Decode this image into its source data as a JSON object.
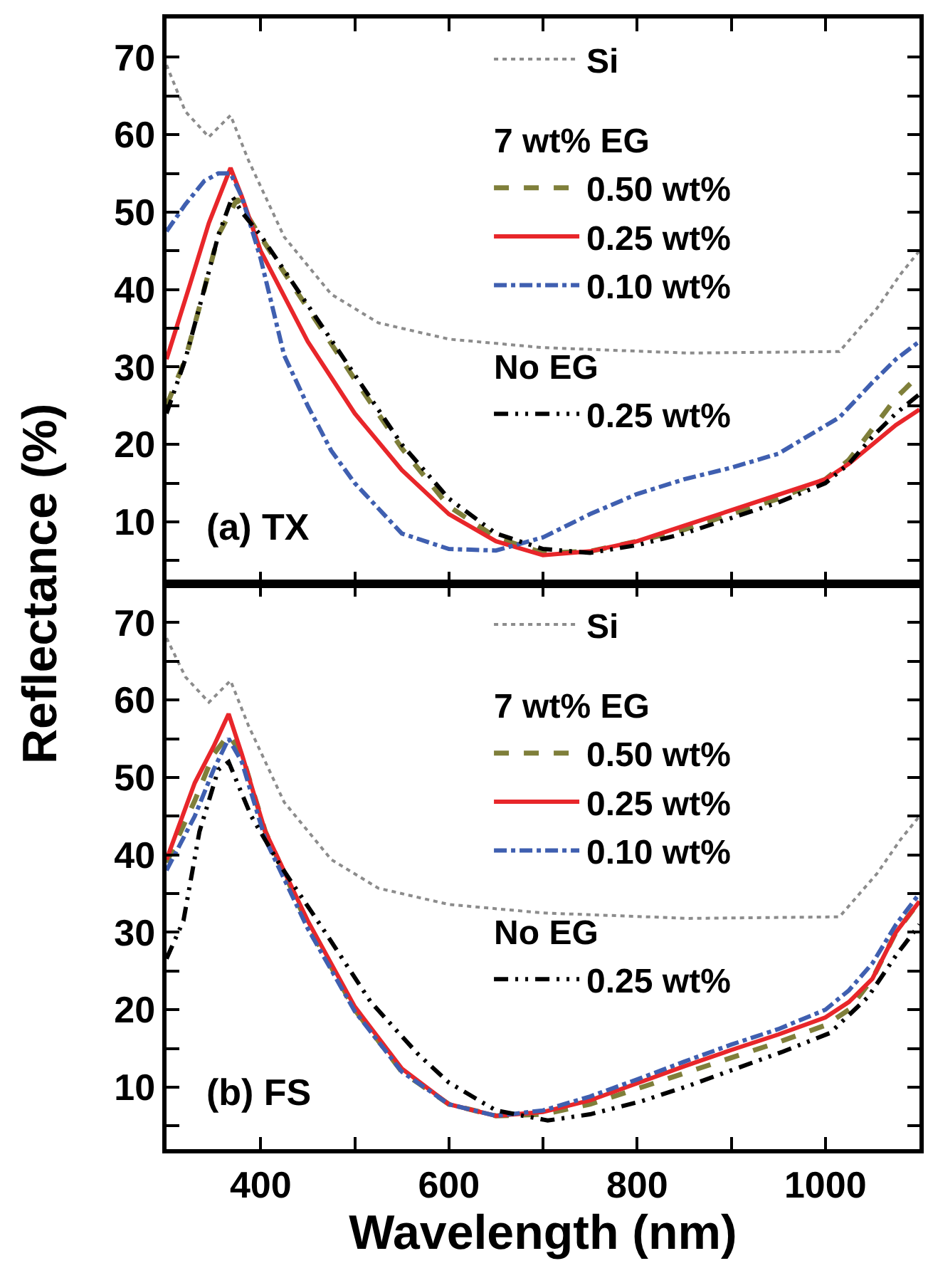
{
  "chart_data": [
    {
      "type": "line",
      "ylabel": "Reflectance (%)",
      "xlim": [
        300,
        1100
      ],
      "ylim": [
        2,
        75
      ],
      "xticks": [
        {
          "value": 300,
          "label": null
        },
        400,
        {
          "value": 500,
          "label": null
        },
        600,
        {
          "value": 700,
          "label": null
        },
        800,
        {
          "value": 900,
          "label": null
        },
        1000,
        {
          "value": 1100,
          "label": null
        }
      ],
      "yticks": [
        {
          "value": 5,
          "label": null
        },
        10,
        {
          "value": 15,
          "label": null
        },
        20,
        {
          "value": 25,
          "label": null
        },
        30,
        {
          "value": 35,
          "label": null
        },
        40,
        {
          "value": 45,
          "label": null
        },
        50,
        {
          "value": 55,
          "label": null
        },
        60,
        {
          "value": 65,
          "label": null
        },
        70
      ],
      "tick_labels": "y",
      "legend": "top right",
      "annotations": [
        "(a) TX",
        "7 wt% EG",
        "No EG"
      ],
      "series": [
        {
          "name": "Si",
          "color": "#8c8c8c",
          "line_style": "dotted",
          "x": [
            300,
            320,
            345,
            368,
            387,
            425,
            475,
            525,
            600,
            700,
            855,
            1015,
            1055,
            1080,
            1100
          ],
          "values": [
            69,
            63,
            59.7,
            62.5,
            56.7,
            46.8,
            39.4,
            35.7,
            33.6,
            32.5,
            31.8,
            32,
            37.6,
            42,
            45
          ]
        },
        {
          "name": "0.50 wt%",
          "color": "#7f7f3a",
          "line_style": "dashed",
          "x": [
            300,
            320,
            340,
            355,
            375,
            400,
            450,
            500,
            550,
            600,
            650,
            700,
            750,
            800,
            850,
            900,
            950,
            1000,
            1025,
            1050,
            1075,
            1100
          ],
          "values": [
            25,
            31,
            40,
            47,
            51.7,
            46.8,
            37.6,
            28.4,
            19.5,
            12,
            8,
            6,
            6.2,
            7.5,
            9,
            11,
            13,
            15.5,
            18,
            22,
            26,
            29
          ]
        },
        {
          "name": "0.25 wt%",
          "color": "#e8262a",
          "line_style": "solid",
          "x": [
            300,
            325,
            345,
            368,
            380,
            400,
            450,
            500,
            550,
            600,
            650,
            700,
            750,
            800,
            850,
            900,
            950,
            1000,
            1025,
            1050,
            1075,
            1100
          ],
          "values": [
            31,
            40.7,
            48.6,
            55.7,
            52,
            45,
            33.3,
            24,
            16.7,
            11,
            7.5,
            5.7,
            6.2,
            7.5,
            9.5,
            11.5,
            13.5,
            15.5,
            17.5,
            20,
            22.5,
            24.5
          ]
        },
        {
          "name": "0.10 wt%",
          "color": "#3f5fb0",
          "line_style": "dashdot",
          "x": [
            300,
            320,
            340,
            355,
            368,
            380,
            400,
            425,
            450,
            475,
            500,
            550,
            600,
            650,
            700,
            750,
            800,
            850,
            900,
            950,
            1015,
            1050,
            1075,
            1100
          ],
          "values": [
            47.5,
            51,
            54,
            55,
            55,
            52,
            44,
            31.5,
            25,
            19.2,
            15,
            8.5,
            6.5,
            6.3,
            8,
            11,
            13.6,
            15.5,
            17,
            18.8,
            23.5,
            28,
            31,
            33.3
          ]
        },
        {
          "name": "0.25 wt%",
          "color": "#000000",
          "line_style": "dashdotdot",
          "x": [
            300,
            320,
            340,
            355,
            370,
            380,
            400,
            450,
            500,
            550,
            600,
            650,
            700,
            750,
            800,
            850,
            900,
            950,
            1000,
            1025,
            1050,
            1075,
            1100
          ],
          "values": [
            24,
            31,
            40,
            47,
            52,
            50,
            47,
            38,
            29,
            20,
            13,
            8.5,
            6.5,
            6,
            7,
            8.5,
            10.5,
            12.5,
            15,
            17.5,
            21,
            24,
            26.5
          ]
        }
      ]
    },
    {
      "type": "line",
      "xlabel": "Wavelength (nm)",
      "xlim": [
        300,
        1100
      ],
      "ylim": [
        2,
        75
      ],
      "xticks": [
        {
          "value": 300,
          "label": null
        },
        400,
        {
          "value": 500,
          "label": null
        },
        600,
        {
          "value": 700,
          "label": null
        },
        800,
        {
          "value": 900,
          "label": null
        },
        1000,
        {
          "value": 1100,
          "label": null
        }
      ],
      "yticks": [
        {
          "value": 5,
          "label": null
        },
        10,
        {
          "value": 15,
          "label": null
        },
        20,
        {
          "value": 25,
          "label": null
        },
        30,
        {
          "value": 35,
          "label": null
        },
        40,
        {
          "value": 45,
          "label": null
        },
        50,
        {
          "value": 55,
          "label": null
        },
        60,
        {
          "value": 65,
          "label": null
        },
        70
      ],
      "legend": "top right",
      "annotations": [
        "(b) FS",
        "7 wt% EG",
        "No EG"
      ],
      "series": [
        {
          "name": "Si",
          "color": "#8c8c8c",
          "line_style": "dotted",
          "x": [
            300,
            320,
            345,
            368,
            387,
            425,
            475,
            525,
            600,
            700,
            855,
            1015,
            1055,
            1080,
            1100
          ],
          "values": [
            68,
            63,
            59.7,
            62.5,
            56.7,
            46.8,
            39.4,
            35.7,
            33.6,
            32.5,
            31.8,
            32,
            37.6,
            42,
            45
          ]
        },
        {
          "name": "0.50 wt%",
          "color": "#7f7f3a",
          "line_style": "dashed",
          "x": [
            300,
            330,
            350,
            366,
            380,
            405,
            450,
            500,
            550,
            600,
            650,
            700,
            750,
            800,
            850,
            900,
            950,
            1000,
            1025,
            1050,
            1075,
            1100
          ],
          "values": [
            39,
            47,
            53,
            55.5,
            53,
            43,
            31,
            20,
            12,
            7.8,
            6.3,
            6.5,
            7.8,
            9.8,
            11.8,
            13.8,
            15.8,
            18,
            20,
            24,
            30,
            34
          ]
        },
        {
          "name": "0.25 wt%",
          "color": "#e8262a",
          "line_style": "solid",
          "x": [
            300,
            330,
            350,
            366,
            380,
            405,
            450,
            500,
            550,
            600,
            650,
            700,
            750,
            800,
            850,
            900,
            950,
            1000,
            1025,
            1050,
            1075,
            1100
          ],
          "values": [
            39.4,
            49.3,
            54,
            58.2,
            53,
            43,
            31.5,
            20.4,
            12.4,
            7.8,
            6.3,
            6.8,
            8.3,
            10.5,
            12.7,
            14.8,
            16.8,
            19,
            21,
            24,
            30,
            34
          ]
        },
        {
          "name": "0.10 wt%",
          "color": "#3f5fb0",
          "line_style": "dashdot",
          "x": [
            300,
            330,
            350,
            366,
            380,
            405,
            450,
            500,
            550,
            600,
            650,
            700,
            750,
            800,
            850,
            900,
            950,
            1000,
            1025,
            1050,
            1075,
            1100
          ],
          "values": [
            38,
            45,
            51,
            55,
            52,
            42,
            30.5,
            19.8,
            12,
            7.8,
            6.3,
            7,
            8.8,
            11,
            13.3,
            15.5,
            17.5,
            20,
            22.5,
            26,
            31,
            35
          ]
        },
        {
          "name": "0.25 wt%",
          "color": "#000000",
          "line_style": "dashdotdot",
          "x": [
            300,
            318,
            335,
            355,
            366,
            390,
            420,
            467,
            517,
            567,
            600,
            650,
            705,
            750,
            805,
            855,
            905,
            955,
            1005,
            1045,
            1075,
            1100
          ],
          "values": [
            26.6,
            31.5,
            43,
            51,
            52,
            45,
            38.8,
            30.3,
            21,
            14.3,
            10.6,
            7,
            5.7,
            6.5,
            8.2,
            10.2,
            12.4,
            14.6,
            17,
            21.6,
            27,
            31
          ]
        }
      ]
    }
  ]
}
